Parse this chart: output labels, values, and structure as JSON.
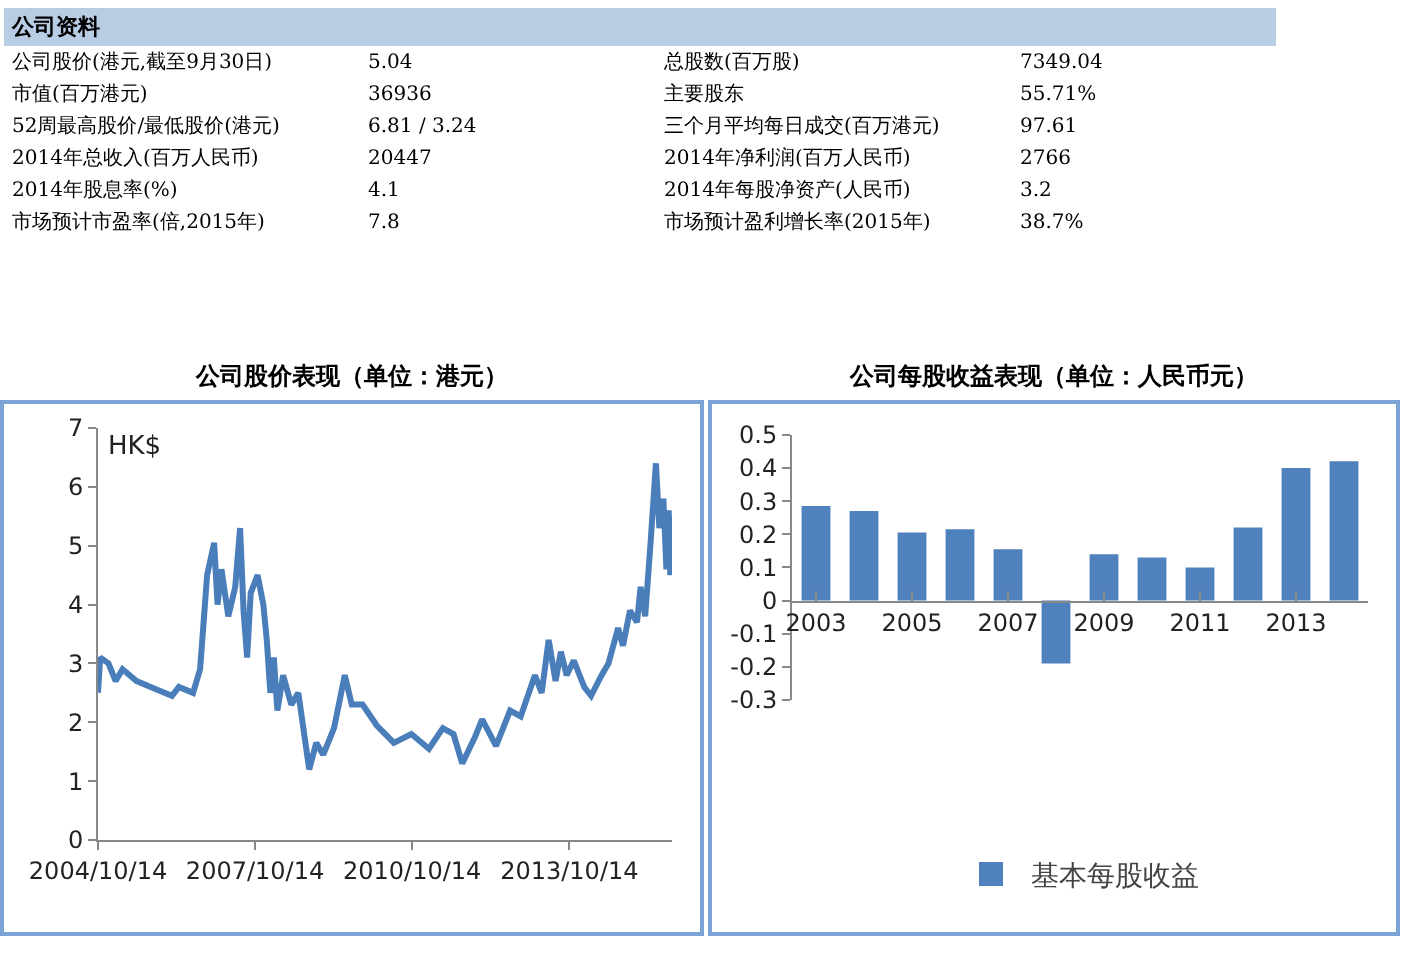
{
  "chart_data": [
    {
      "type": "other",
      "title": "公司资料",
      "annotations": [
        "公司股价(港元,截至9月30日)",
        "5.04",
        "总股数(百万股)",
        "7349.04",
        "市值(百万港元)",
        "36936",
        "主要股东",
        "55.71%",
        "52周最高股价/最低股价(港元)",
        "6.81 / 3.24",
        "三个月平均每日成交(百万港元)",
        "97.61",
        "2014年总收入(百万人民币)",
        "20447",
        "2014年净利润(百万人民币)",
        "2766",
        "2014年股息率(%)",
        "4.1",
        "2014年每股净资产(人民币)",
        "3.2",
        "市场预计市盈率(倍,2015年)",
        "7.8",
        "市场预计盈利增长率(2015年)",
        "38.7%"
      ]
    },
    {
      "type": "line",
      "title": "公司股价表现（单位：港元）",
      "annotations": [
        "HK$"
      ],
      "legend": false,
      "grid": false,
      "marker": "none",
      "line_style": "solid",
      "xlim": [
        "2004-10-14",
        "2015-09-30"
      ],
      "xticks": [
        {
          "value": "2004-10-14",
          "label": "2004/10/14"
        },
        {
          "value": "2007-10-14",
          "label": "2007/10/14"
        },
        {
          "value": "2010-10-14",
          "label": "2010/10/14"
        },
        {
          "value": "2013-10-14",
          "label": "2013/10/14"
        }
      ],
      "ylim": [
        0,
        7
      ],
      "yticks": [
        0,
        1,
        2,
        3,
        4,
        5,
        6,
        7
      ],
      "series": [
        {
          "color": "#4a7ebb",
          "x": [
            "2004-10-14",
            "2004-10-29",
            "2004-12-26",
            "2005-02-14",
            "2005-04-03",
            "2005-07-10",
            "2005-12-05",
            "2006-03-14",
            "2006-05-01",
            "2006-08-08",
            "2006-09-26",
            "2006-11-14",
            "2007-01-02",
            "2007-01-26",
            "2007-02-22",
            "2007-04-11",
            "2007-05-29",
            "2007-07-02",
            "2007-07-26",
            "2007-08-20",
            "2007-09-14",
            "2007-11-01",
            "2007-12-11",
            "2008-01-04",
            "2008-01-29",
            "2008-02-22",
            "2008-03-18",
            "2008-04-27",
            "2008-06-23",
            "2008-08-11",
            "2008-10-26",
            "2008-12-14",
            "2009-02-01",
            "2009-04-17",
            "2009-07-01",
            "2009-08-19",
            "2009-11-02",
            "2010-02-08",
            "2010-06-08",
            "2010-10-08",
            "2011-02-08",
            "2011-05-16",
            "2011-07-29",
            "2011-09-28",
            "2011-12-26",
            "2012-02-14",
            "2012-05-21",
            "2012-08-27",
            "2012-11-09",
            "2013-02-16",
            "2013-04-04",
            "2013-05-23",
            "2013-07-10",
            "2013-08-16",
            "2013-09-25",
            "2013-11-14",
            "2014-01-26",
            "2014-03-15",
            "2014-05-27",
            "2014-07-14",
            "2014-09-19",
            "2014-10-23",
            "2014-12-11",
            "2015-01-29",
            "2015-02-23",
            "2015-03-27",
            "2015-05-05",
            "2015-06-10",
            "2015-07-04",
            "2015-08-01",
            "2015-08-22",
            "2015-09-07",
            "2015-09-18",
            "2015-09-25",
            "2015-09-30"
          ],
          "values": [
            2.5,
            3.1,
            3.0,
            2.7,
            2.9,
            2.7,
            2.55,
            2.45,
            2.6,
            2.5,
            2.9,
            4.5,
            5.05,
            4.0,
            4.6,
            3.8,
            4.3,
            5.3,
            3.9,
            3.1,
            4.2,
            4.5,
            4.0,
            3.4,
            2.5,
            3.1,
            2.2,
            2.8,
            2.3,
            2.5,
            1.2,
            1.65,
            1.45,
            1.9,
            2.8,
            2.3,
            2.3,
            1.95,
            1.65,
            1.8,
            1.55,
            1.9,
            1.8,
            1.3,
            1.75,
            2.05,
            1.6,
            2.2,
            2.1,
            2.8,
            2.5,
            3.4,
            2.7,
            3.2,
            2.8,
            3.05,
            2.6,
            2.45,
            2.8,
            3.0,
            3.6,
            3.3,
            3.9,
            3.7,
            4.3,
            3.8,
            5.1,
            6.4,
            5.3,
            5.8,
            4.6,
            5.6,
            4.5,
            5.5,
            5.0
          ]
        }
      ]
    },
    {
      "type": "bar",
      "title": "公司每股收益表现（单位：人民币元）",
      "legend": "bottom",
      "grid": false,
      "categories": [
        "2003",
        null,
        "2005",
        null,
        "2007",
        null,
        "2009",
        null,
        "2011",
        null,
        "2013",
        null
      ],
      "ylim": [
        -0.3,
        0.5
      ],
      "yticks": [
        -0.3,
        -0.2,
        -0.1,
        0,
        0.1,
        0.2,
        0.3,
        0.4,
        0.5
      ],
      "series": [
        {
          "name": "基本每股收益",
          "color": "#4f81bd",
          "values": [
            0.285,
            0.27,
            0.205,
            0.215,
            0.155,
            -0.19,
            0.14,
            0.13,
            0.1,
            0.22,
            0.4,
            0.42
          ]
        }
      ]
    }
  ]
}
